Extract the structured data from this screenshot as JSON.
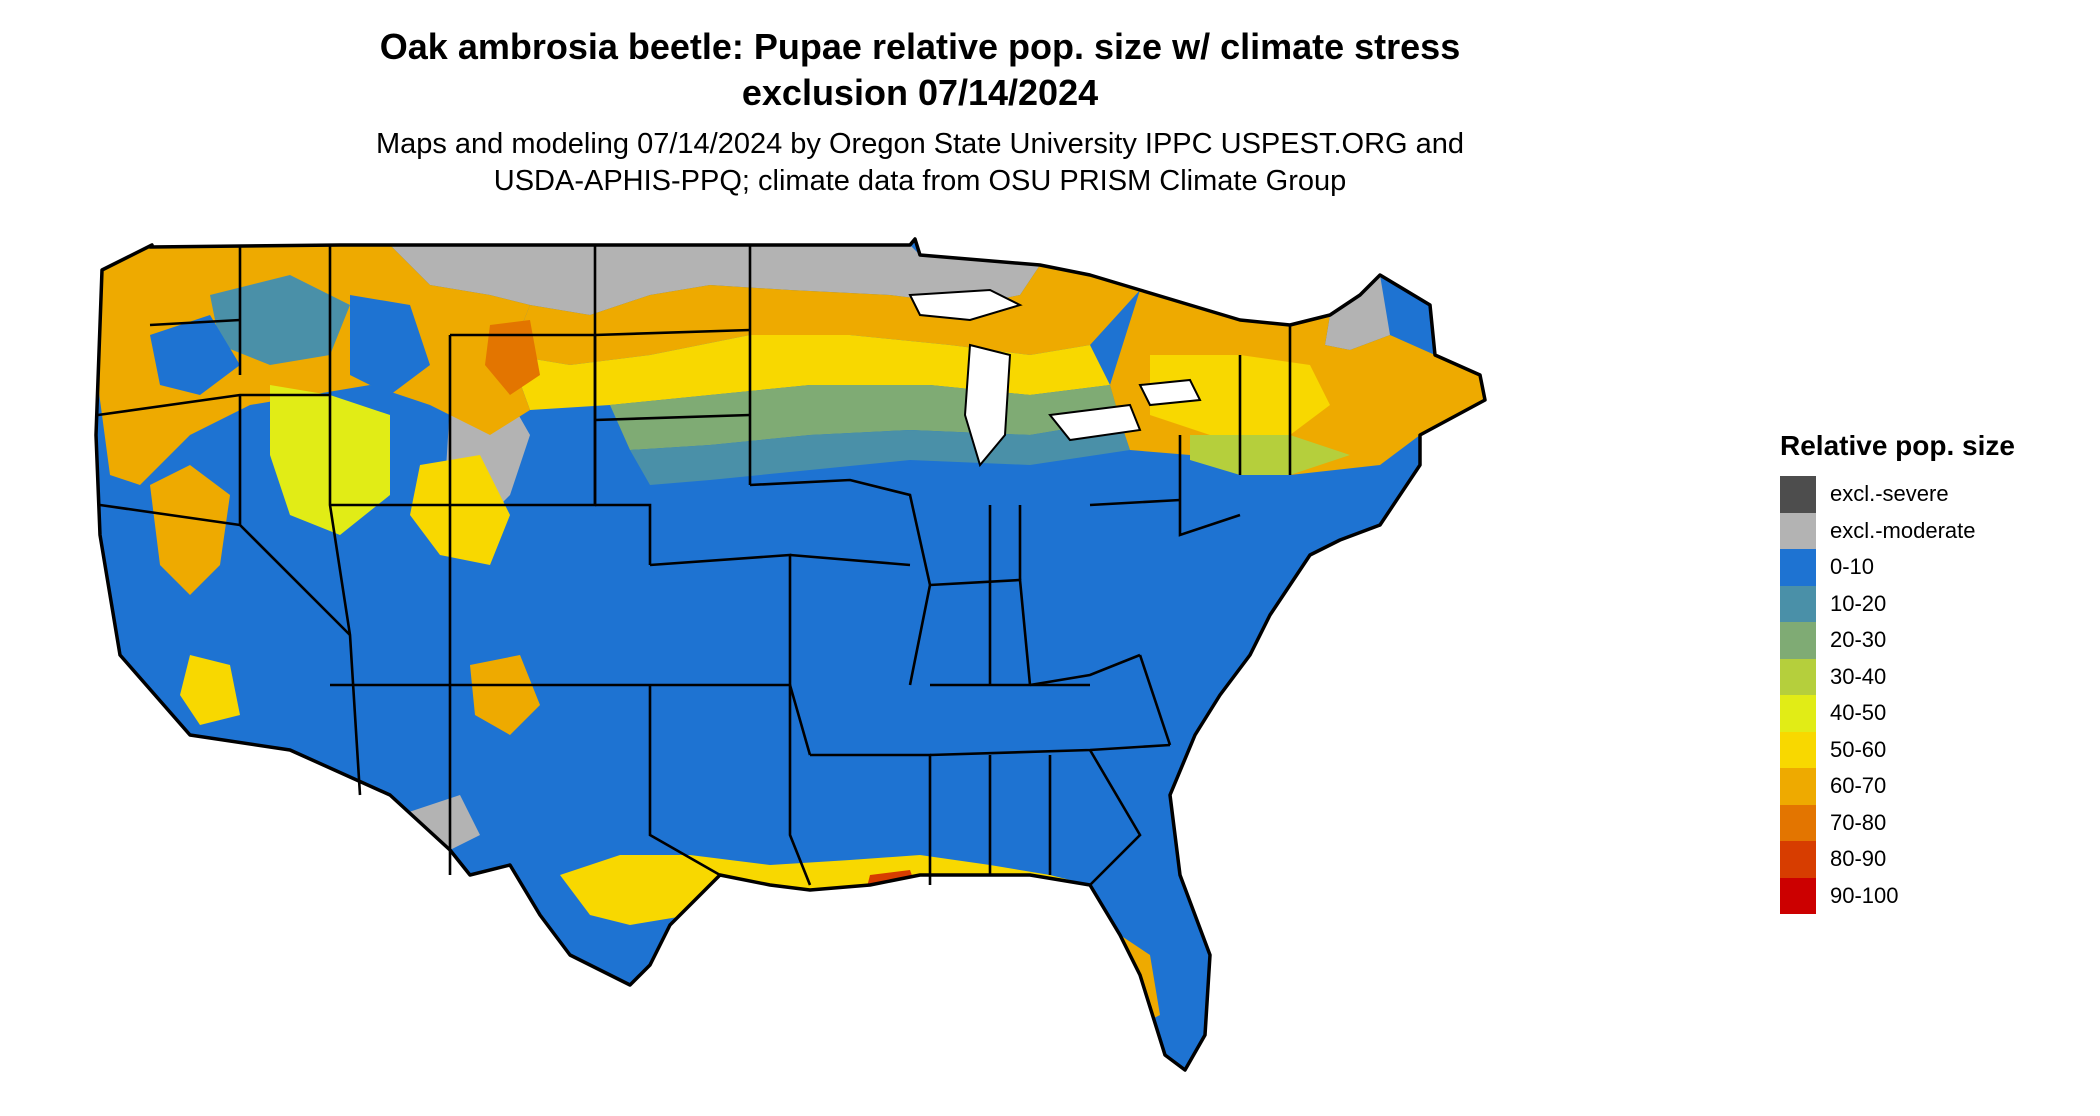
{
  "title_line1": "Oak ambrosia beetle: Pupae relative pop. size w/ climate stress",
  "title_line2": "exclusion 07/14/2024",
  "subtitle_line1": "Maps and modeling 07/14/2024 by Oregon State University IPPC USPEST.ORG and",
  "subtitle_line2": "USDA-APHIS-PPQ; climate data from OSU PRISM Climate Group",
  "legend": {
    "title": "Relative pop. size",
    "items": [
      {
        "label": "excl.-severe",
        "color": "#4d4d4d"
      },
      {
        "label": "excl.-moderate",
        "color": "#b3b3b3"
      },
      {
        "label": "0-10",
        "color": "#1e73d2"
      },
      {
        "label": "10-20",
        "color": "#4a90a8"
      },
      {
        "label": "20-30",
        "color": "#7fab74"
      },
      {
        "label": "30-40",
        "color": "#b5cf3c"
      },
      {
        "label": "40-50",
        "color": "#e1ec16"
      },
      {
        "label": "50-60",
        "color": "#f8d800"
      },
      {
        "label": "60-70",
        "color": "#eeaa00"
      },
      {
        "label": "70-80",
        "color": "#e37500"
      },
      {
        "label": "80-90",
        "color": "#d73d00"
      },
      {
        "label": "90-100",
        "color": "#cc0000"
      }
    ]
  },
  "map": {
    "region": "Contiguous United States",
    "base_color": "#1e73d2",
    "state_border_color": "#000000"
  }
}
